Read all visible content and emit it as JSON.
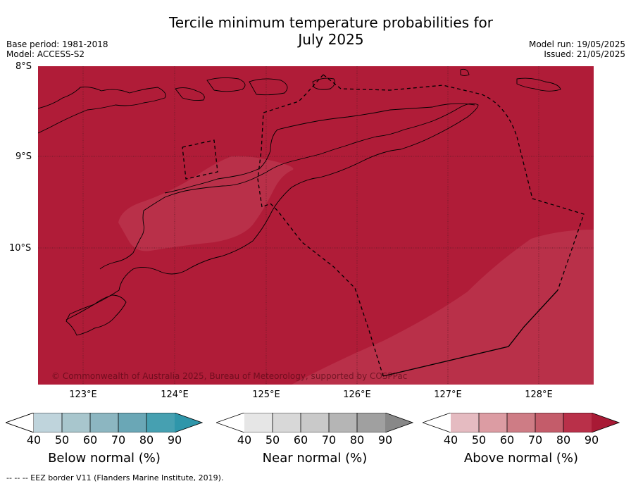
{
  "title_line1": "Tercile minimum temperature probabilities for",
  "title_line2": "July 2025",
  "base_period": "Base period: 1981-2018",
  "model": "Model: ACCESS-S2",
  "model_run": "Model run: 19/05/2025",
  "issued": "Issued: 21/05/2025",
  "lat_labels": [
    "8°S",
    "9°S",
    "10°S"
  ],
  "lon_labels": [
    "123°E",
    "124°E",
    "125°E",
    "126°E",
    "127°E",
    "128°E"
  ],
  "credit": "© Commonwealth of Australia 2025, Bureau of Meteorology, supported by COSPPac",
  "colors": {
    "above_90": "#b01c38",
    "above_80": "#b93049",
    "above_70": "#c45d6c",
    "above_60": "#d2848e",
    "above_50": "#dc9ca3",
    "above_40": "#e6bcc1"
  },
  "colorbars": [
    {
      "label": "Below normal (%)",
      "ticks": [
        "40",
        "50",
        "60",
        "70",
        "80",
        "90"
      ],
      "colors": [
        "#bfd4dc",
        "#a8c6cd",
        "#8cb6c1",
        "#6aa7b6",
        "#46a0b1",
        "#2f96aa"
      ]
    },
    {
      "label": "Near normal (%)",
      "ticks": [
        "40",
        "50",
        "60",
        "70",
        "80",
        "90"
      ],
      "colors": [
        "#e6e6e6",
        "#d8d8d8",
        "#c9c9c9",
        "#b5b5b5",
        "#a0a0a0",
        "#888888"
      ]
    },
    {
      "label": "Above normal (%)",
      "ticks": [
        "40",
        "50",
        "60",
        "70",
        "80",
        "90"
      ],
      "colors": [
        "#e5bbc1",
        "#dc9ca3",
        "#ce7c85",
        "#c45c6a",
        "#b93049",
        "#a81a35"
      ]
    }
  ],
  "footer": "--  --  -- EEZ border V11 (Flanders Marine Institute, 2019)."
}
